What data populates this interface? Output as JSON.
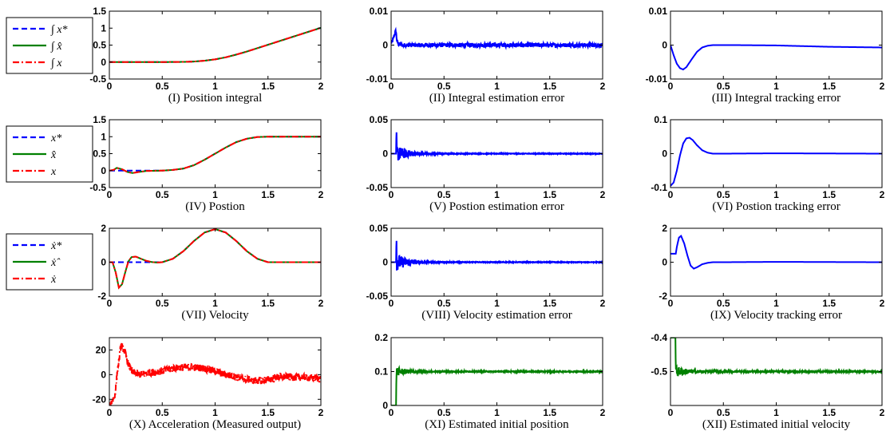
{
  "figure": {
    "background": "#ffffff"
  },
  "colors": {
    "blue": "#0000ff",
    "green": "#008000",
    "red": "#ff0000"
  },
  "legends": [
    {
      "panel": 0,
      "entries": [
        {
          "label": "∫ x*",
          "color": "#0000ff",
          "style": "dashed"
        },
        {
          "label": "∫ x̂",
          "color": "#008000",
          "style": "solid"
        },
        {
          "label": "∫ x",
          "color": "#ff0000",
          "style": "dashdot"
        }
      ]
    },
    {
      "panel": 3,
      "entries": [
        {
          "label": "x*",
          "color": "#0000ff",
          "style": "dashed"
        },
        {
          "label": "x̂",
          "color": "#008000",
          "style": "solid"
        },
        {
          "label": "x",
          "color": "#ff0000",
          "style": "dashdot"
        }
      ]
    },
    {
      "panel": 6,
      "entries": [
        {
          "label": "ẋ*",
          "color": "#0000ff",
          "style": "dashed"
        },
        {
          "label": "ẋ̂",
          "color": "#008000",
          "style": "solid"
        },
        {
          "label": "ẋ",
          "color": "#ff0000",
          "style": "dashdot"
        }
      ]
    }
  ],
  "chart_data": [
    {
      "type": "line",
      "title": "(I) Position integral",
      "xlim": [
        0,
        2
      ],
      "ylim": [
        -0.5,
        1.5
      ],
      "xticks": [
        "0",
        "0.5",
        "1",
        "1.5",
        "2"
      ],
      "xtick_values": [
        0,
        0.5,
        1,
        1.5,
        2
      ],
      "yticks": [
        "-0.5",
        "0",
        "0.5",
        "1",
        "1.5"
      ],
      "ytick_values": [
        -0.5,
        0,
        0.5,
        1,
        1.5
      ],
      "series": [
        {
          "name": "∫ x*",
          "color": "#0000ff",
          "style": "dashed",
          "x": [
            0,
            0.5,
            0.7,
            0.8,
            0.9,
            1.0,
            1.1,
            1.2,
            1.3,
            1.4,
            1.5,
            1.6,
            1.7,
            1.8,
            1.9,
            2.0
          ],
          "y": [
            0,
            0,
            0.005,
            0.015,
            0.04,
            0.08,
            0.14,
            0.22,
            0.31,
            0.41,
            0.51,
            0.61,
            0.71,
            0.81,
            0.91,
            1.01
          ]
        },
        {
          "name": "∫ x̂",
          "color": "#008000",
          "style": "solid",
          "x": [
            0,
            0.5,
            0.7,
            0.8,
            0.9,
            1.0,
            1.1,
            1.2,
            1.3,
            1.4,
            1.5,
            1.6,
            1.7,
            1.8,
            1.9,
            2.0
          ],
          "y": [
            0,
            0,
            0.005,
            0.015,
            0.04,
            0.08,
            0.14,
            0.22,
            0.31,
            0.41,
            0.51,
            0.61,
            0.71,
            0.81,
            0.91,
            1.01
          ]
        },
        {
          "name": "∫ x",
          "color": "#ff0000",
          "style": "dashdot",
          "x": [
            0,
            0.5,
            0.7,
            0.8,
            0.9,
            1.0,
            1.1,
            1.2,
            1.3,
            1.4,
            1.5,
            1.6,
            1.7,
            1.8,
            1.9,
            2.0
          ],
          "y": [
            0,
            0,
            0.005,
            0.015,
            0.04,
            0.08,
            0.14,
            0.22,
            0.31,
            0.41,
            0.51,
            0.61,
            0.71,
            0.81,
            0.91,
            1.01
          ]
        }
      ]
    },
    {
      "type": "line",
      "title": "(II) Integral estimation error",
      "xlim": [
        0,
        2
      ],
      "ylim": [
        -0.01,
        0.01
      ],
      "xticks": [
        "0",
        "0.5",
        "1",
        "1.5",
        "2"
      ],
      "xtick_values": [
        0,
        0.5,
        1,
        1.5,
        2
      ],
      "yticks": [
        "-0.01",
        "0",
        "0.01"
      ],
      "ytick_values": [
        -0.01,
        0,
        0.01
      ],
      "series": [
        {
          "color": "#0000ff",
          "style": "solid",
          "noise": 0.0006,
          "x": [
            0,
            0.01,
            0.02,
            0.03,
            0.045,
            0.055,
            0.07,
            0.1,
            2.0
          ],
          "y": [
            0.0006,
            0.001,
            0.0018,
            0.003,
            0.0043,
            0.0012,
            0.0003,
            0.0,
            0.0
          ]
        }
      ]
    },
    {
      "type": "line",
      "title": "(III) Integral tracking error",
      "xlim": [
        0,
        2
      ],
      "ylim": [
        -0.01,
        0.01
      ],
      "xticks": [
        "0",
        "0.5",
        "1",
        "1.5",
        "2"
      ],
      "xtick_values": [
        0,
        0.5,
        1,
        1.5,
        2
      ],
      "yticks": [
        "-0.01",
        "0",
        "0.01"
      ],
      "ytick_values": [
        -0.01,
        0,
        0.01
      ],
      "series": [
        {
          "color": "#0000ff",
          "style": "solid",
          "x": [
            0,
            0.03,
            0.06,
            0.09,
            0.12,
            0.15,
            0.2,
            0.25,
            0.3,
            0.35,
            0.4,
            0.6,
            1.0,
            1.5,
            2.0
          ],
          "y": [
            0,
            -0.003,
            -0.0055,
            -0.0068,
            -0.0072,
            -0.0065,
            -0.0042,
            -0.002,
            -0.0007,
            -0.0002,
            0.0,
            0.0,
            -0.0001,
            -0.0005,
            -0.0007
          ]
        }
      ]
    },
    {
      "type": "line",
      "title": "(IV) Postion",
      "xlim": [
        0,
        2
      ],
      "ylim": [
        -0.5,
        1.5
      ],
      "xticks": [
        "0",
        "0.5",
        "1",
        "1.5",
        "2"
      ],
      "xtick_values": [
        0,
        0.5,
        1,
        1.5,
        2
      ],
      "yticks": [
        "-0.5",
        "0",
        "0.5",
        "1",
        "1.5"
      ],
      "ytick_values": [
        -0.5,
        0,
        0.5,
        1,
        1.5
      ],
      "series": [
        {
          "name": "x*",
          "color": "#0000ff",
          "style": "dashed",
          "x": [
            0,
            0.5,
            0.6,
            0.7,
            0.8,
            0.9,
            1.0,
            1.1,
            1.2,
            1.3,
            1.4,
            1.5,
            2.0
          ],
          "y": [
            0,
            0,
            0.02,
            0.06,
            0.16,
            0.32,
            0.5,
            0.68,
            0.84,
            0.94,
            0.99,
            1.0,
            1.0
          ]
        },
        {
          "name": "x̂",
          "color": "#008000",
          "style": "solid",
          "x": [
            0,
            0.04,
            0.07,
            0.12,
            0.17,
            0.22,
            0.28,
            0.35,
            0.5,
            0.6,
            0.7,
            0.8,
            0.9,
            1.0,
            1.1,
            1.2,
            1.3,
            1.4,
            1.5,
            2.0
          ],
          "y": [
            0,
            0.02,
            0.08,
            0.04,
            -0.04,
            -0.07,
            -0.04,
            -0.01,
            0,
            0.02,
            0.06,
            0.16,
            0.32,
            0.5,
            0.68,
            0.84,
            0.94,
            0.99,
            1.0,
            1.0
          ]
        },
        {
          "name": "x",
          "color": "#ff0000",
          "style": "dashdot",
          "x": [
            0,
            0.04,
            0.07,
            0.12,
            0.17,
            0.22,
            0.28,
            0.35,
            0.5,
            0.6,
            0.7,
            0.8,
            0.9,
            1.0,
            1.1,
            1.2,
            1.3,
            1.4,
            1.5,
            2.0
          ],
          "y": [
            0,
            0.02,
            0.08,
            0.04,
            -0.04,
            -0.07,
            -0.04,
            -0.01,
            0,
            0.02,
            0.06,
            0.16,
            0.32,
            0.5,
            0.68,
            0.84,
            0.94,
            0.99,
            1.0,
            1.0
          ]
        }
      ]
    },
    {
      "type": "line",
      "title": "(V) Postion estimation error",
      "xlim": [
        0,
        2
      ],
      "ylim": [
        -0.05,
        0.05
      ],
      "xticks": [
        "0",
        "0.5",
        "1",
        "1.5",
        "2"
      ],
      "xtick_values": [
        0,
        0.5,
        1,
        1.5,
        2
      ],
      "yticks": [
        "-0.05",
        "0",
        "0.05"
      ],
      "ytick_values": [
        -0.05,
        0,
        0.05
      ],
      "series": [
        {
          "color": "#0000ff",
          "style": "solid",
          "noise_decay": [
            0.012,
            0.12,
            0.0005
          ],
          "x": [
            0,
            0.048,
            0.05,
            0.053,
            2.0
          ],
          "y": [
            0,
            0,
            0.05,
            0,
            0
          ]
        }
      ]
    },
    {
      "type": "line",
      "title": "(VI) Postion tracking error",
      "xlim": [
        0,
        2
      ],
      "ylim": [
        -0.1,
        0.1
      ],
      "xticks": [
        "0",
        "0.5",
        "1",
        "1.5",
        "2"
      ],
      "xtick_values": [
        0,
        0.5,
        1,
        1.5,
        2
      ],
      "yticks": [
        "-0.1",
        "0",
        "0.1"
      ],
      "ytick_values": [
        -0.1,
        0,
        0.1
      ],
      "series": [
        {
          "color": "#0000ff",
          "style": "solid",
          "x": [
            0,
            0.03,
            0.06,
            0.09,
            0.12,
            0.15,
            0.18,
            0.21,
            0.25,
            0.3,
            0.35,
            0.4,
            0.5,
            1.0,
            2.0
          ],
          "y": [
            -0.095,
            -0.085,
            -0.05,
            -0.005,
            0.03,
            0.045,
            0.047,
            0.04,
            0.025,
            0.01,
            0.003,
            0.0,
            0.0,
            0.001,
            0.0
          ]
        }
      ]
    },
    {
      "type": "line",
      "title": "(VII) Velocity",
      "xlim": [
        0,
        2
      ],
      "ylim": [
        -2,
        2
      ],
      "xticks": [
        "0",
        "0.5",
        "1",
        "1.5",
        "2"
      ],
      "xtick_values": [
        0,
        0.5,
        1,
        1.5,
        2
      ],
      "yticks": [
        "-2",
        "0",
        "2"
      ],
      "ytick_values": [
        -2,
        0,
        2
      ],
      "series": [
        {
          "name": "ẋ*",
          "color": "#0000ff",
          "style": "dashed",
          "x": [
            0,
            0.5,
            0.6,
            0.7,
            0.8,
            0.9,
            1.0,
            1.1,
            1.2,
            1.3,
            1.4,
            1.5,
            2.0
          ],
          "y": [
            0,
            0,
            0.2,
            0.65,
            1.25,
            1.75,
            1.95,
            1.75,
            1.25,
            0.65,
            0.2,
            0,
            0
          ]
        },
        {
          "name": "ẋ̂",
          "color": "#008000",
          "style": "solid",
          "x": [
            0,
            0.03,
            0.06,
            0.09,
            0.12,
            0.15,
            0.18,
            0.21,
            0.25,
            0.3,
            0.35,
            0.4,
            0.45,
            0.5,
            0.6,
            0.7,
            0.8,
            0.9,
            1.0,
            1.1,
            1.2,
            1.3,
            1.4,
            1.5,
            2.0
          ],
          "y": [
            0,
            0,
            -0.6,
            -1.5,
            -1.3,
            -0.6,
            0.05,
            0.3,
            0.33,
            0.2,
            0.08,
            0.01,
            -0.02,
            0,
            0.2,
            0.65,
            1.25,
            1.75,
            1.95,
            1.75,
            1.25,
            0.65,
            0.2,
            0,
            0
          ]
        },
        {
          "name": "ẋ",
          "color": "#ff0000",
          "style": "dashdot",
          "x": [
            0,
            0.03,
            0.06,
            0.09,
            0.12,
            0.15,
            0.18,
            0.21,
            0.25,
            0.3,
            0.35,
            0.4,
            0.45,
            0.5,
            0.6,
            0.7,
            0.8,
            0.9,
            1.0,
            1.1,
            1.2,
            1.3,
            1.4,
            1.5,
            2.0
          ],
          "y": [
            0,
            0,
            -0.6,
            -1.5,
            -1.3,
            -0.6,
            0.05,
            0.3,
            0.33,
            0.2,
            0.08,
            0.01,
            -0.02,
            0,
            0.2,
            0.65,
            1.25,
            1.75,
            1.95,
            1.75,
            1.25,
            0.65,
            0.2,
            0,
            0
          ]
        }
      ]
    },
    {
      "type": "line",
      "title": "(VIII) Velocity estimation error",
      "xlim": [
        0,
        2
      ],
      "ylim": [
        -0.05,
        0.05
      ],
      "xticks": [
        "0",
        "0.5",
        "1",
        "1.5",
        "2"
      ],
      "xtick_values": [
        0,
        0.5,
        1,
        1.5,
        2
      ],
      "yticks": [
        "-0.05",
        "0",
        "0.05"
      ],
      "ytick_values": [
        -0.05,
        0,
        0.05
      ],
      "series": [
        {
          "color": "#0000ff",
          "style": "solid",
          "noise_decay": [
            0.012,
            0.12,
            0.0005
          ],
          "x": [
            0,
            0.048,
            0.05,
            0.053,
            2.0
          ],
          "y": [
            0,
            0,
            0.05,
            0,
            0
          ]
        }
      ]
    },
    {
      "type": "line",
      "title": "(IX) Velocity tracking error",
      "xlim": [
        0,
        2
      ],
      "ylim": [
        -2,
        2
      ],
      "xticks": [
        "0",
        "0.5",
        "1",
        "1.5",
        "2"
      ],
      "xtick_values": [
        0,
        0.5,
        1,
        1.5,
        2
      ],
      "yticks": [
        "-2",
        "0",
        "2"
      ],
      "ytick_values": [
        -2,
        0,
        2
      ],
      "series": [
        {
          "color": "#0000ff",
          "style": "solid",
          "x": [
            0,
            0.05,
            0.06,
            0.08,
            0.1,
            0.13,
            0.16,
            0.19,
            0.22,
            0.25,
            0.3,
            0.35,
            0.4,
            0.5,
            1.0,
            2.0
          ],
          "y": [
            0.5,
            0.5,
            0.9,
            1.45,
            1.55,
            1.1,
            0.4,
            -0.2,
            -0.38,
            -0.3,
            -0.12,
            -0.04,
            0.0,
            0.0,
            0.02,
            0.0
          ]
        }
      ]
    },
    {
      "type": "line",
      "title": "(X) Acceleration (Measured output)",
      "xlim": [
        0,
        2
      ],
      "ylim": [
        -25,
        30
      ],
      "xticks": [
        "0",
        "0.5",
        "1",
        "1.5",
        "2"
      ],
      "xtick_values": [
        0,
        0.5,
        1,
        1.5,
        2
      ],
      "yticks": [
        "-20",
        "0",
        "20"
      ],
      "ytick_values": [
        -20,
        0,
        20
      ],
      "series": [
        {
          "color": "#ff0000",
          "style": "dashdot",
          "noise": 3,
          "x": [
            0,
            0.05,
            0.08,
            0.11,
            0.14,
            0.18,
            0.22,
            0.3,
            0.4,
            0.5,
            0.6,
            0.7,
            0.8,
            0.9,
            1.0,
            1.1,
            1.2,
            1.3,
            1.4,
            1.5,
            1.6,
            1.8,
            2.0
          ],
          "y": [
            -25,
            -18,
            5,
            24,
            20,
            8,
            2,
            0,
            2,
            3,
            5,
            6,
            6,
            5,
            3,
            0,
            -2,
            -4,
            -5,
            -4,
            -2,
            -2,
            -3
          ]
        }
      ]
    },
    {
      "type": "line",
      "title": "(XI) Estimated initial position",
      "xlim": [
        0,
        2
      ],
      "ylim": [
        0,
        0.2
      ],
      "xticks": [
        "0",
        "0.5",
        "1",
        "1.5",
        "2"
      ],
      "xtick_values": [
        0,
        0.5,
        1,
        1.5,
        2
      ],
      "yticks": [
        "0",
        "0.1",
        "0.2"
      ],
      "ytick_values": [
        0,
        0.1,
        0.2
      ],
      "series": [
        {
          "color": "#008000",
          "style": "solid",
          "noise_decay": [
            0.012,
            0.12,
            0.0015
          ],
          "x": [
            0,
            0.045,
            0.047,
            0.05,
            2.0
          ],
          "y": [
            0,
            0,
            0.0,
            0.1,
            0.1
          ]
        }
      ]
    },
    {
      "type": "line",
      "title": "(XII) Estimated initial velocity",
      "xlim": [
        0,
        2
      ],
      "ylim": [
        -0.6,
        -0.4
      ],
      "xticks": [
        "0",
        "0.5",
        "1",
        "1.5",
        "2"
      ],
      "xtick_values": [
        0,
        0.5,
        1,
        1.5,
        2
      ],
      "yticks": [
        "-0.4",
        "-0.5"
      ],
      "ytick_values": [
        -0.4,
        -0.5
      ],
      "series": [
        {
          "color": "#008000",
          "style": "solid",
          "noise_decay": [
            0.015,
            0.12,
            0.002
          ],
          "x": [
            0,
            0.045,
            0.047,
            0.05,
            2.0
          ],
          "y": [
            -0.4,
            -0.4,
            -0.4,
            -0.5,
            -0.5
          ]
        }
      ]
    }
  ]
}
